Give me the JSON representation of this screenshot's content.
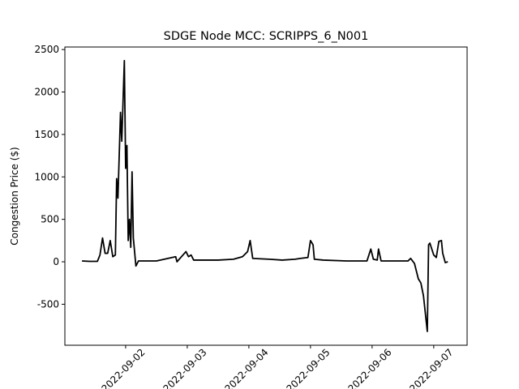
{
  "chart_data": {
    "type": "line",
    "title": "SDGE Node MCC: SCRIPPS_6_N001",
    "ylabel": "Congestion Price ($)",
    "x": [
      "2022-09-01T07:00Z",
      "2022-09-01T10:00Z",
      "2022-09-01T13:00Z",
      "2022-09-01T14:00Z",
      "2022-09-01T15:00Z",
      "2022-09-01T16:00Z",
      "2022-09-01T17:00Z",
      "2022-09-01T18:00Z",
      "2022-09-01T19:00Z",
      "2022-09-01T20:00Z",
      "2022-09-01T20:30Z",
      "2022-09-01T21:00Z",
      "2022-09-01T22:00Z",
      "2022-09-01T22:30Z",
      "2022-09-01T23:30Z",
      "2022-09-02T00:00Z",
      "2022-09-02T00:30Z",
      "2022-09-02T01:00Z",
      "2022-09-02T01:30Z",
      "2022-09-02T02:00Z",
      "2022-09-02T02:30Z",
      "2022-09-02T03:00Z",
      "2022-09-02T04:00Z",
      "2022-09-02T05:00Z",
      "2022-09-02T12:00Z",
      "2022-09-02T19:30Z",
      "2022-09-02T20:00Z",
      "2022-09-02T23:30Z",
      "2022-09-03T00:30Z",
      "2022-09-03T01:30Z",
      "2022-09-03T02:30Z",
      "2022-09-03T12:00Z",
      "2022-09-03T18:00Z",
      "2022-09-03T21:30Z",
      "2022-09-03T23:30Z",
      "2022-09-04T00:30Z",
      "2022-09-04T01:30Z",
      "2022-09-04T08:00Z",
      "2022-09-04T13:00Z",
      "2022-09-04T18:00Z",
      "2022-09-04T20:00Z",
      "2022-09-04T23:00Z",
      "2022-09-05T00:00Z",
      "2022-09-05T01:00Z",
      "2022-09-05T01:30Z",
      "2022-09-05T05:00Z",
      "2022-09-05T14:00Z",
      "2022-09-05T22:00Z",
      "2022-09-05T23:30Z",
      "2022-09-06T00:30Z",
      "2022-09-06T02:00Z",
      "2022-09-06T02:30Z",
      "2022-09-06T03:30Z",
      "2022-09-06T14:00Z",
      "2022-09-06T15:00Z",
      "2022-09-06T16:30Z",
      "2022-09-06T18:00Z",
      "2022-09-06T19:00Z",
      "2022-09-06T20:00Z",
      "2022-09-06T21:30Z",
      "2022-09-06T22:00Z",
      "2022-09-06T22:30Z",
      "2022-09-07T00:00Z",
      "2022-09-07T01:00Z",
      "2022-09-07T02:00Z",
      "2022-09-07T03:00Z",
      "2022-09-07T03:30Z",
      "2022-09-07T04:30Z",
      "2022-09-07T05:30Z"
    ],
    "series": [
      {
        "color": "#000000",
        "values": [
          10,
          5,
          5,
          80,
          280,
          100,
          100,
          250,
          60,
          80,
          980,
          750,
          1760,
          1420,
          2370,
          1100,
          1370,
          250,
          500,
          170,
          1060,
          280,
          -50,
          10,
          10,
          60,
          0,
          120,
          60,
          80,
          20,
          20,
          30,
          60,
          120,
          250,
          40,
          30,
          20,
          30,
          40,
          50,
          250,
          200,
          30,
          20,
          10,
          10,
          150,
          30,
          20,
          150,
          10,
          10,
          40,
          -20,
          -200,
          -250,
          -400,
          -820,
          200,
          220,
          80,
          50,
          240,
          250,
          100,
          -10,
          0
        ]
      }
    ],
    "xlim": [
      "2022-09-01T00:20Z",
      "2022-09-07T13:00Z"
    ],
    "xticks": [
      "2022-09-02",
      "2022-09-03",
      "2022-09-04",
      "2022-09-05",
      "2022-09-06",
      "2022-09-07"
    ],
    "ylim": [
      -983,
      2530
    ],
    "yticks": [
      -500,
      0,
      500,
      1000,
      1500,
      2000,
      2500
    ]
  }
}
